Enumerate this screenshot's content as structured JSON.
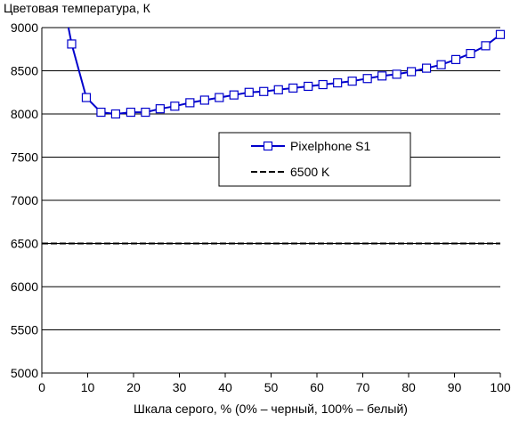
{
  "chart_data": {
    "type": "line",
    "title": "",
    "ylabel": "Цветовая температура, К",
    "xlabel": "Шкала серого, % (0% – черный, 100% – белый)",
    "xlim": [
      0,
      100
    ],
    "ylim": [
      5000,
      9000
    ],
    "x_ticks": [
      "0",
      "10",
      "20",
      "30",
      "40",
      "50",
      "60",
      "70",
      "80",
      "90",
      "100"
    ],
    "y_ticks": [
      "5000",
      "5500",
      "6000",
      "6500",
      "7000",
      "7500",
      "8000",
      "8500",
      "9000"
    ],
    "grid": "horizontal",
    "legend_position": "center-right",
    "series": [
      {
        "name": "Pixelphone S1",
        "color": "#0000cc",
        "style": "solid-with-square-markers",
        "entry_point": {
          "x": 5.8,
          "y": 9000
        },
        "x": [
          6.5,
          9.7,
          12.9,
          16.1,
          19.4,
          22.6,
          25.8,
          29.0,
          32.3,
          35.5,
          38.7,
          41.9,
          45.2,
          48.4,
          51.6,
          54.8,
          58.1,
          61.3,
          64.5,
          67.7,
          71.0,
          74.2,
          77.4,
          80.6,
          83.9,
          87.1,
          90.3,
          93.5,
          96.8,
          100.0
        ],
        "values": [
          8810,
          8190,
          8020,
          8000,
          8020,
          8020,
          8060,
          8090,
          8130,
          8160,
          8190,
          8220,
          8250,
          8260,
          8280,
          8300,
          8320,
          8340,
          8360,
          8380,
          8410,
          8440,
          8460,
          8490,
          8530,
          8570,
          8630,
          8700,
          8790,
          8920
        ]
      },
      {
        "name": "6500 K",
        "color": "#000000",
        "style": "dashed",
        "x": [
          0,
          100
        ],
        "values": [
          6500,
          6500
        ]
      }
    ]
  }
}
